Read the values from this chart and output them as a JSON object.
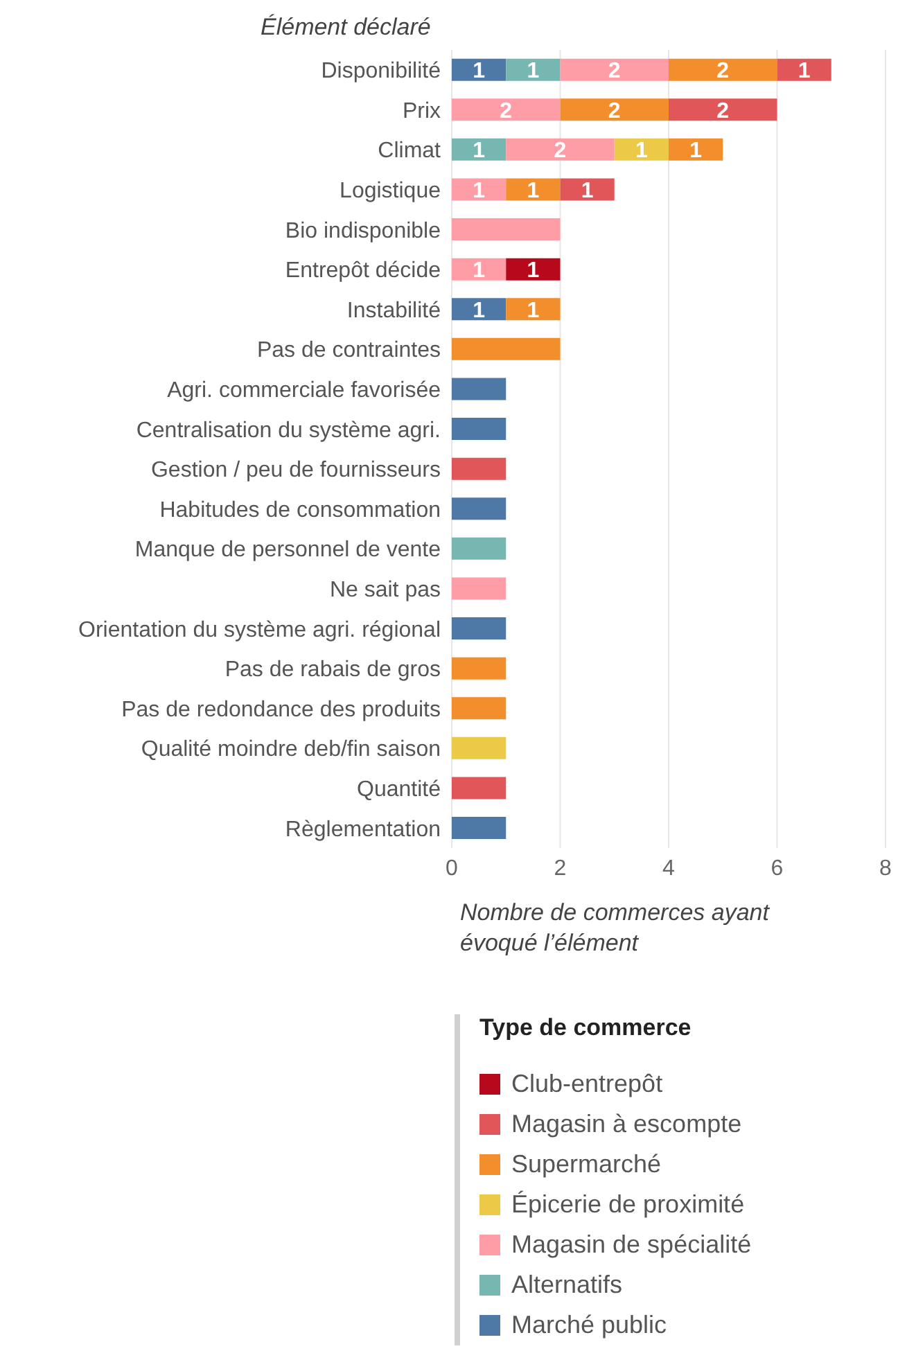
{
  "chart_data": {
    "type": "bar",
    "orientation": "horizontal",
    "stacked": true,
    "ylabel": "Élément déclaré",
    "xlabel": "Nombre de commerces ayant évoqué l’élément",
    "legend_title": "Type de commerce",
    "legend": "bottom",
    "grid": "x",
    "categories": [
      "Disponibilité",
      "Prix",
      "Climat",
      "Logistique",
      "Bio indisponible",
      "Entrepôt décide",
      "Instabilité",
      "Pas de contraintes",
      "Agri. commerciale favorisée",
      "Centralisation du système agri.",
      "Gestion / peu de fournisseurs",
      "Habitudes de consommation",
      "Manque de personnel de vente",
      "Ne sait pas",
      "Orientation du système agri. régional",
      "Pas de rabais de gros",
      "Pas de redondance des produits",
      "Qualité moindre deb/fin saison",
      "Quantité",
      "Règlementation"
    ],
    "xlim": [
      0,
      8
    ],
    "xticks": [
      0,
      2,
      4,
      6,
      8
    ],
    "series": [
      {
        "name": "Marché public",
        "color": "#4e79a7",
        "values": [
          1,
          null,
          null,
          null,
          null,
          null,
          1,
          null,
          1,
          1,
          null,
          1,
          null,
          null,
          1,
          null,
          null,
          null,
          null,
          1
        ],
        "value_labels": [
          "1",
          null,
          null,
          null,
          null,
          null,
          "1",
          null,
          null,
          null,
          null,
          null,
          null,
          null,
          null,
          null,
          null,
          null,
          null,
          null
        ]
      },
      {
        "name": "Alternatifs",
        "color": "#76b7b2",
        "values": [
          1,
          null,
          1,
          null,
          null,
          null,
          null,
          null,
          null,
          null,
          null,
          null,
          1,
          null,
          null,
          null,
          null,
          null,
          null,
          null
        ],
        "value_labels": [
          "1",
          null,
          "1",
          null,
          null,
          null,
          null,
          null,
          null,
          null,
          null,
          null,
          null,
          null,
          null,
          null,
          null,
          null,
          null,
          null
        ]
      },
      {
        "name": "Magasin de spécialité",
        "color": "#ff9da7",
        "values": [
          2,
          2,
          2,
          1,
          2,
          1,
          null,
          null,
          null,
          null,
          null,
          null,
          null,
          1,
          null,
          null,
          null,
          null,
          null,
          null
        ],
        "value_labels": [
          "2",
          "2",
          "2",
          "1",
          null,
          "1",
          null,
          null,
          null,
          null,
          null,
          null,
          null,
          null,
          null,
          null,
          null,
          null,
          null,
          null
        ]
      },
      {
        "name": "Épicerie de proximité",
        "color": "#edc948",
        "values": [
          null,
          null,
          1,
          null,
          null,
          null,
          null,
          null,
          null,
          null,
          null,
          null,
          null,
          null,
          null,
          null,
          null,
          1,
          null,
          null
        ],
        "value_labels": [
          null,
          null,
          "1",
          null,
          null,
          null,
          null,
          null,
          null,
          null,
          null,
          null,
          null,
          null,
          null,
          null,
          null,
          null,
          null,
          null
        ]
      },
      {
        "name": "Supermarché",
        "color": "#f28e2b",
        "values": [
          2,
          2,
          1,
          1,
          null,
          null,
          1,
          2,
          null,
          null,
          null,
          null,
          null,
          null,
          null,
          1,
          1,
          null,
          null,
          null
        ],
        "value_labels": [
          "2",
          "2",
          "1",
          "1",
          null,
          null,
          "1",
          null,
          null,
          null,
          null,
          null,
          null,
          null,
          null,
          null,
          null,
          null,
          null,
          null
        ]
      },
      {
        "name": "Magasin à escompte",
        "color": "#e15759",
        "values": [
          1,
          2,
          null,
          1,
          null,
          null,
          null,
          null,
          null,
          null,
          1,
          null,
          null,
          null,
          null,
          null,
          null,
          null,
          1,
          null
        ],
        "value_labels": [
          "1",
          "2",
          null,
          "1",
          null,
          null,
          null,
          null,
          null,
          null,
          null,
          null,
          null,
          null,
          null,
          null,
          null,
          null,
          null,
          null
        ]
      },
      {
        "name": "Club-entrepôt",
        "color": "#b60a1c",
        "values": [
          null,
          null,
          null,
          null,
          null,
          1,
          null,
          null,
          null,
          null,
          null,
          null,
          null,
          null,
          null,
          null,
          null,
          null,
          null,
          null
        ],
        "value_labels": [
          null,
          null,
          null,
          null,
          null,
          "1",
          null,
          null,
          null,
          null,
          null,
          null,
          null,
          null,
          null,
          null,
          null,
          null,
          null,
          null
        ]
      }
    ]
  }
}
